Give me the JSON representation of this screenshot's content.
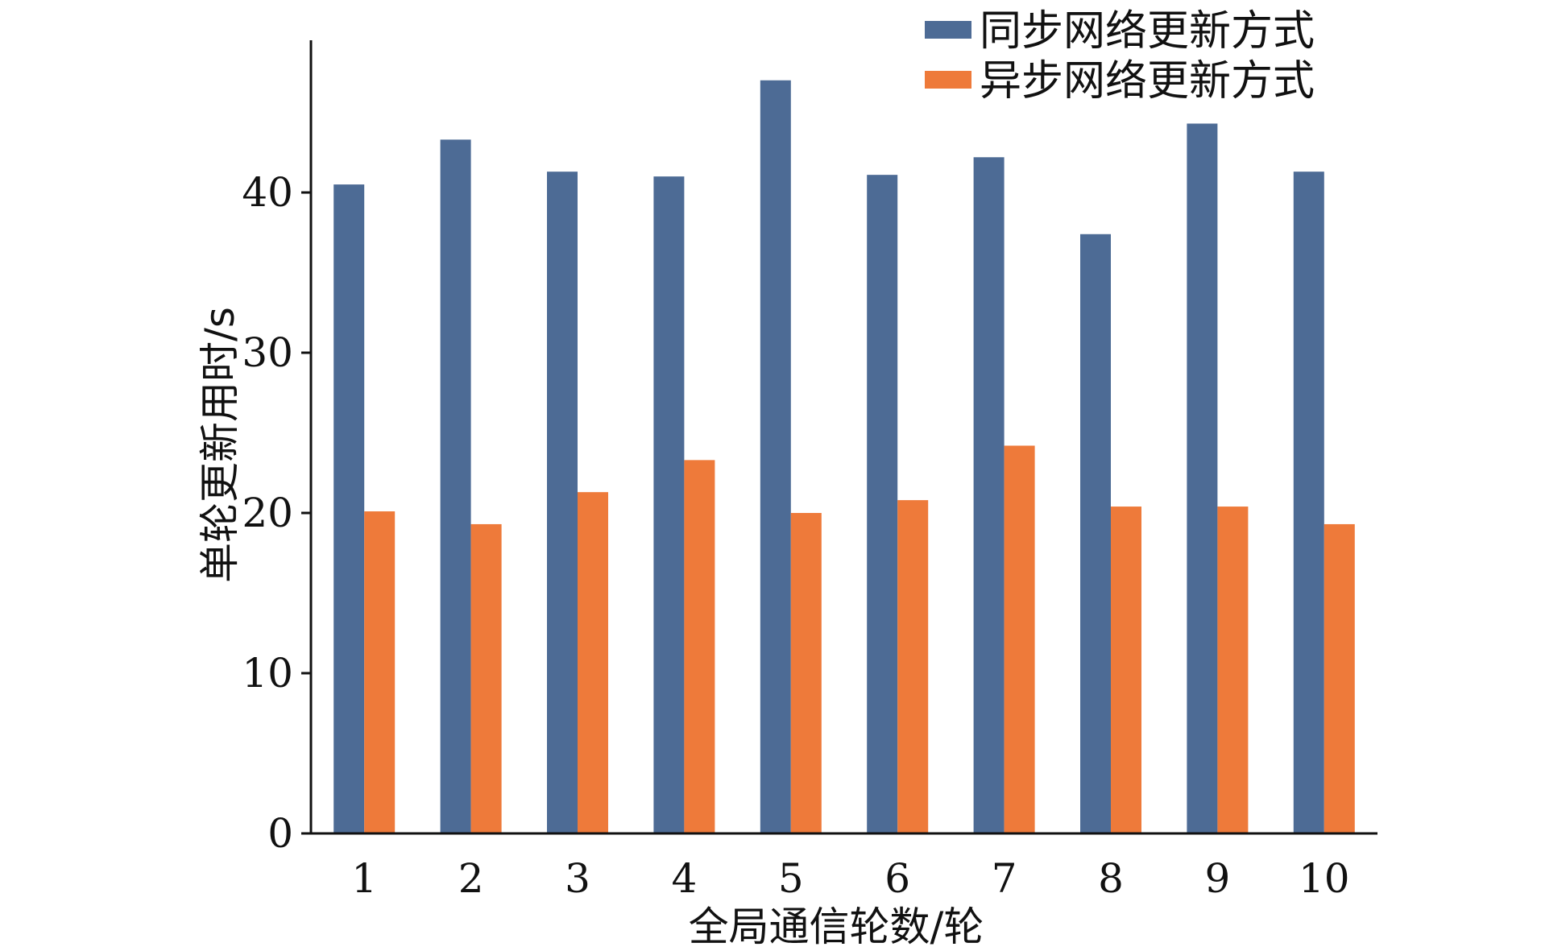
{
  "colors": {
    "sync": "#4d6b95",
    "async": "#ee7a3a",
    "axis": "#111111"
  },
  "chart_data": {
    "type": "bar",
    "categories": [
      "1",
      "2",
      "3",
      "4",
      "5",
      "6",
      "7",
      "8",
      "9",
      "10"
    ],
    "series": [
      {
        "name": "同步网络更新方式",
        "values": [
          40.5,
          43.3,
          41.3,
          41.0,
          47.0,
          41.1,
          42.2,
          37.4,
          44.3,
          41.3
        ]
      },
      {
        "name": "异步网络更新方式",
        "values": [
          20.1,
          19.3,
          21.3,
          23.3,
          20.0,
          20.8,
          24.2,
          20.4,
          20.4,
          19.3
        ]
      }
    ],
    "xlabel": "全局通信轮数/轮",
    "ylabel": "单轮更新用时/s",
    "ylim": [
      0,
      49.5
    ],
    "yticks": [
      "0",
      "10",
      "20",
      "30",
      "40"
    ],
    "legend_position": "top-right",
    "grid": false
  }
}
